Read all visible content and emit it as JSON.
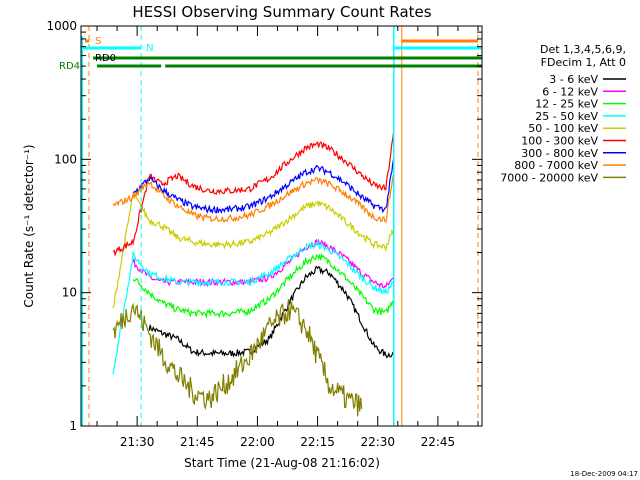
{
  "chart_data": {
    "type": "line",
    "title": "HESSI Observing Summary Count Rates",
    "xlabel": "Start Time (21-Aug-08 21:16:02)",
    "ylabel": "Count Rate (s⁻¹ detector⁻¹)",
    "xlim": [
      "21:16",
      "22:56"
    ],
    "ylim": [
      1,
      1000
    ],
    "yscale": "log",
    "x_ticks": [
      "21:30",
      "21:45",
      "22:00",
      "22:15",
      "22:30",
      "22:45"
    ],
    "y_ticks": [
      "1",
      "10",
      "100",
      "1000"
    ],
    "grid": false,
    "legend_position": "right",
    "legend_header": [
      "Det 1,3,4,5,6,9,",
      "FDecim 1, Att 0"
    ],
    "timestamp": "18-Dec-2009 04:17",
    "series": [
      {
        "name": "3 - 6 keV",
        "color": "#000000",
        "x": [
          "21:24",
          "21:29",
          "21:33",
          "21:36",
          "21:40",
          "21:44",
          "21:48",
          "21:53",
          "21:58",
          "22:03",
          "22:08",
          "22:12",
          "22:15",
          "22:18",
          "22:22",
          "22:26",
          "22:29",
          "22:32",
          "22:34"
        ],
        "y": [
          null,
          null,
          5.5,
          5,
          4.5,
          3.6,
          3.5,
          3.5,
          3.6,
          4.5,
          8.5,
          13,
          15,
          14,
          10,
          6,
          4,
          3.4,
          3.5
        ]
      },
      {
        "name": "6 - 12 keV",
        "color": "#ff00ff",
        "x": [
          "21:24",
          "21:29",
          "21:33",
          "21:36",
          "21:40",
          "21:44",
          "21:48",
          "21:53",
          "21:58",
          "22:03",
          "22:08",
          "22:12",
          "22:15",
          "22:18",
          "22:22",
          "22:26",
          "22:29",
          "22:32",
          "22:34"
        ],
        "y": [
          null,
          17,
          13,
          12,
          12,
          12,
          12,
          12,
          12,
          13,
          17,
          22,
          24,
          22,
          18,
          14,
          12,
          11,
          13
        ]
      },
      {
        "name": "12 - 25 keV",
        "color": "#00ff00",
        "x": [
          "21:24",
          "21:29",
          "21:33",
          "21:36",
          "21:40",
          "21:44",
          "21:48",
          "21:53",
          "21:58",
          "22:03",
          "22:08",
          "22:12",
          "22:15",
          "22:18",
          "22:22",
          "22:26",
          "22:29",
          "22:32",
          "22:34"
        ],
        "y": [
          null,
          13,
          10,
          8.5,
          7.5,
          7,
          7,
          7,
          7.3,
          9,
          13,
          17,
          19,
          17,
          13,
          9.5,
          7.5,
          7,
          9
        ]
      },
      {
        "name": "25 - 50 keV",
        "color": "#00ffff",
        "x": [
          "21:24",
          "21:29",
          "21:33",
          "21:36",
          "21:40",
          "21:44",
          "21:48",
          "21:53",
          "21:58",
          "22:03",
          "22:08",
          "22:12",
          "22:15",
          "22:18",
          "22:22",
          "22:26",
          "22:29",
          "22:32",
          "22:34"
        ],
        "y": [
          2.5,
          19,
          14,
          13,
          12,
          12,
          12,
          12,
          12,
          14,
          18,
          22,
          23,
          21,
          17,
          13,
          11,
          10,
          12
        ]
      },
      {
        "name": "50 - 100 keV",
        "color": "#cccc00",
        "x": [
          "21:24",
          "21:29",
          "21:33",
          "21:36",
          "21:40",
          "21:44",
          "21:48",
          "21:53",
          "21:58",
          "22:03",
          "22:08",
          "22:12",
          "22:15",
          "22:18",
          "22:22",
          "22:26",
          "22:29",
          "22:32",
          "22:34"
        ],
        "y": [
          7.5,
          55,
          35,
          32,
          26,
          24,
          23,
          23,
          24,
          28,
          36,
          44,
          47,
          43,
          34,
          27,
          23,
          22,
          30
        ]
      },
      {
        "name": "100 - 300 keV",
        "color": "#ff0000",
        "x": [
          "21:24",
          "21:29",
          "21:33",
          "21:36",
          "21:40",
          "21:44",
          "21:48",
          "21:53",
          "21:58",
          "22:03",
          "22:08",
          "22:12",
          "22:15",
          "22:18",
          "22:22",
          "22:26",
          "22:29",
          "22:32",
          "22:34"
        ],
        "y": [
          20,
          24,
          75,
          65,
          75,
          63,
          58,
          58,
          60,
          72,
          98,
          122,
          130,
          120,
          97,
          76,
          64,
          60,
          160
        ]
      },
      {
        "name": "300 - 800 keV",
        "color": "#0000ff",
        "x": [
          "21:24",
          "21:29",
          "21:33",
          "21:36",
          "21:40",
          "21:44",
          "21:48",
          "21:53",
          "21:58",
          "22:03",
          "22:08",
          "22:12",
          "22:15",
          "22:18",
          "22:22",
          "22:26",
          "22:29",
          "22:32",
          "22:34"
        ],
        "y": [
          null,
          55,
          72,
          60,
          50,
          44,
          42,
          42,
          44,
          52,
          66,
          80,
          86,
          80,
          66,
          52,
          45,
          42,
          100
        ]
      },
      {
        "name": "800 - 7000 keV",
        "color": "#ff8000",
        "x": [
          "21:24",
          "21:29",
          "21:33",
          "21:36",
          "21:40",
          "21:44",
          "21:48",
          "21:53",
          "21:58",
          "22:03",
          "22:08",
          "22:12",
          "22:15",
          "22:18",
          "22:22",
          "22:26",
          "22:29",
          "22:32",
          "22:34"
        ],
        "y": [
          45,
          52,
          68,
          55,
          45,
          38,
          36,
          36,
          38,
          45,
          56,
          66,
          70,
          65,
          55,
          44,
          37,
          35,
          80
        ]
      },
      {
        "name": "7000 - 20000 keV",
        "color": "#808000",
        "x": [
          "21:24",
          "21:29",
          "21:33",
          "21:36",
          "21:40",
          "21:44",
          "21:48",
          "21:53",
          "21:58",
          "22:03",
          "22:08",
          "22:12",
          "22:15",
          "22:18",
          "22:22",
          "22:26",
          "22:29",
          "22:32",
          "22:34"
        ],
        "y": [
          5,
          8,
          5,
          3.5,
          2.4,
          1.8,
          1.6,
          2.2,
          3.3,
          5.5,
          7.5,
          5.5,
          3.3,
          2,
          1.6,
          1.4,
          null,
          null,
          null
        ]
      }
    ],
    "flag_bars": [
      {
        "label": "S",
        "color": "#ff8000",
        "segments": [
          [
            "21:17",
            "21:18"
          ],
          [
            "22:36",
            "22:55"
          ]
        ]
      },
      {
        "label": "N",
        "color": "#00ffff",
        "segments": [
          [
            "21:16",
            "21:31"
          ],
          [
            "22:34",
            "22:56"
          ]
        ]
      },
      {
        "label": "RD0",
        "color": "#008000",
        "segments": [
          [
            "21:19",
            "22:56"
          ]
        ]
      },
      {
        "label": "RD4",
        "color": "#008000",
        "segments": [
          [
            "21:20",
            "21:36"
          ],
          [
            "21:37",
            "22:56"
          ]
        ]
      }
    ]
  }
}
